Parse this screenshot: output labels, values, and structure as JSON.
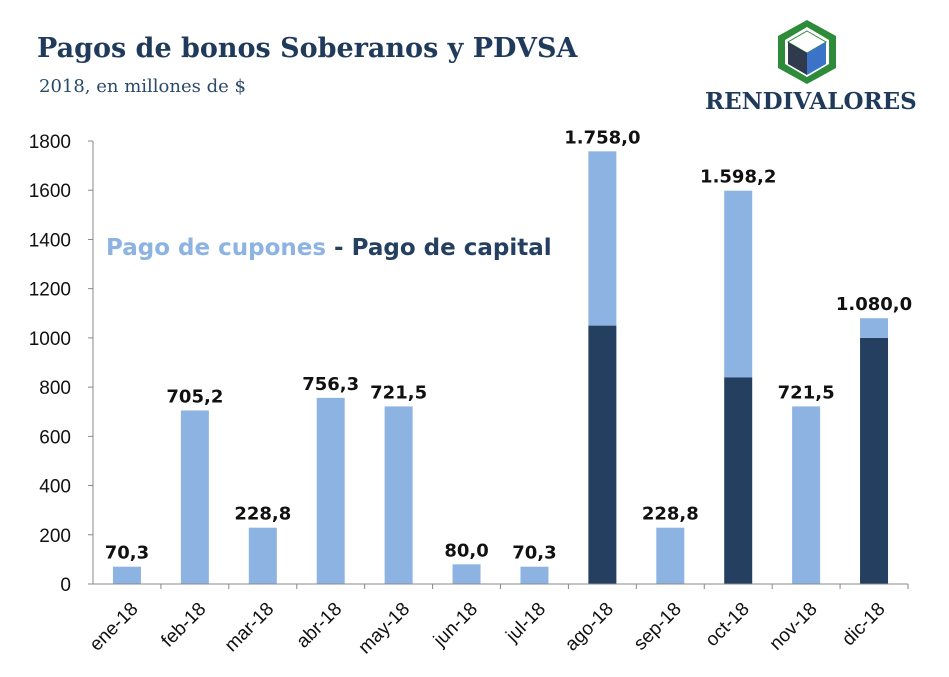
{
  "header": {
    "title": "Pagos de bonos Soberanos y PDVSA",
    "subtitle": "2018, en millones de $",
    "brand": "RENDIVALORES"
  },
  "legend": {
    "coupon_label": "Pago de cupones",
    "separator": " - ",
    "capital_label": "Pago de capital"
  },
  "colors": {
    "coupon": "#8db3e2",
    "capital": "#243f60",
    "logo_green": "#2e8b3a",
    "logo_blue": "#3b73c9",
    "logo_dark": "#2f3b4c"
  },
  "chart_data": {
    "type": "bar",
    "stacked": true,
    "categories": [
      "ene-18",
      "feb-18",
      "mar-18",
      "abr-18",
      "may-18",
      "jun-18",
      "jul-18",
      "ago-18",
      "sep-18",
      "oct-18",
      "nov-18",
      "dic-18"
    ],
    "series": [
      {
        "name": "Pago de capital",
        "values": [
          0,
          0,
          0,
          0,
          0,
          0,
          0,
          1050,
          0,
          840,
          0,
          1000
        ]
      },
      {
        "name": "Pago de cupones",
        "values": [
          70.3,
          705.2,
          228.8,
          756.3,
          721.5,
          80.0,
          70.3,
          708.0,
          228.8,
          758.2,
          721.5,
          80.0
        ]
      }
    ],
    "totals_labels": [
      "70,3",
      "705,2",
      "228,8",
      "756,3",
      "721,5",
      "80,0",
      "70,3",
      "1.758,0",
      "228,8",
      "1.598,2",
      "721,5",
      "1.080,0"
    ],
    "ylim": [
      0,
      1800
    ],
    "yticks": [
      0,
      200,
      400,
      600,
      800,
      1000,
      1200,
      1400,
      1600,
      1800
    ],
    "grid": false
  }
}
